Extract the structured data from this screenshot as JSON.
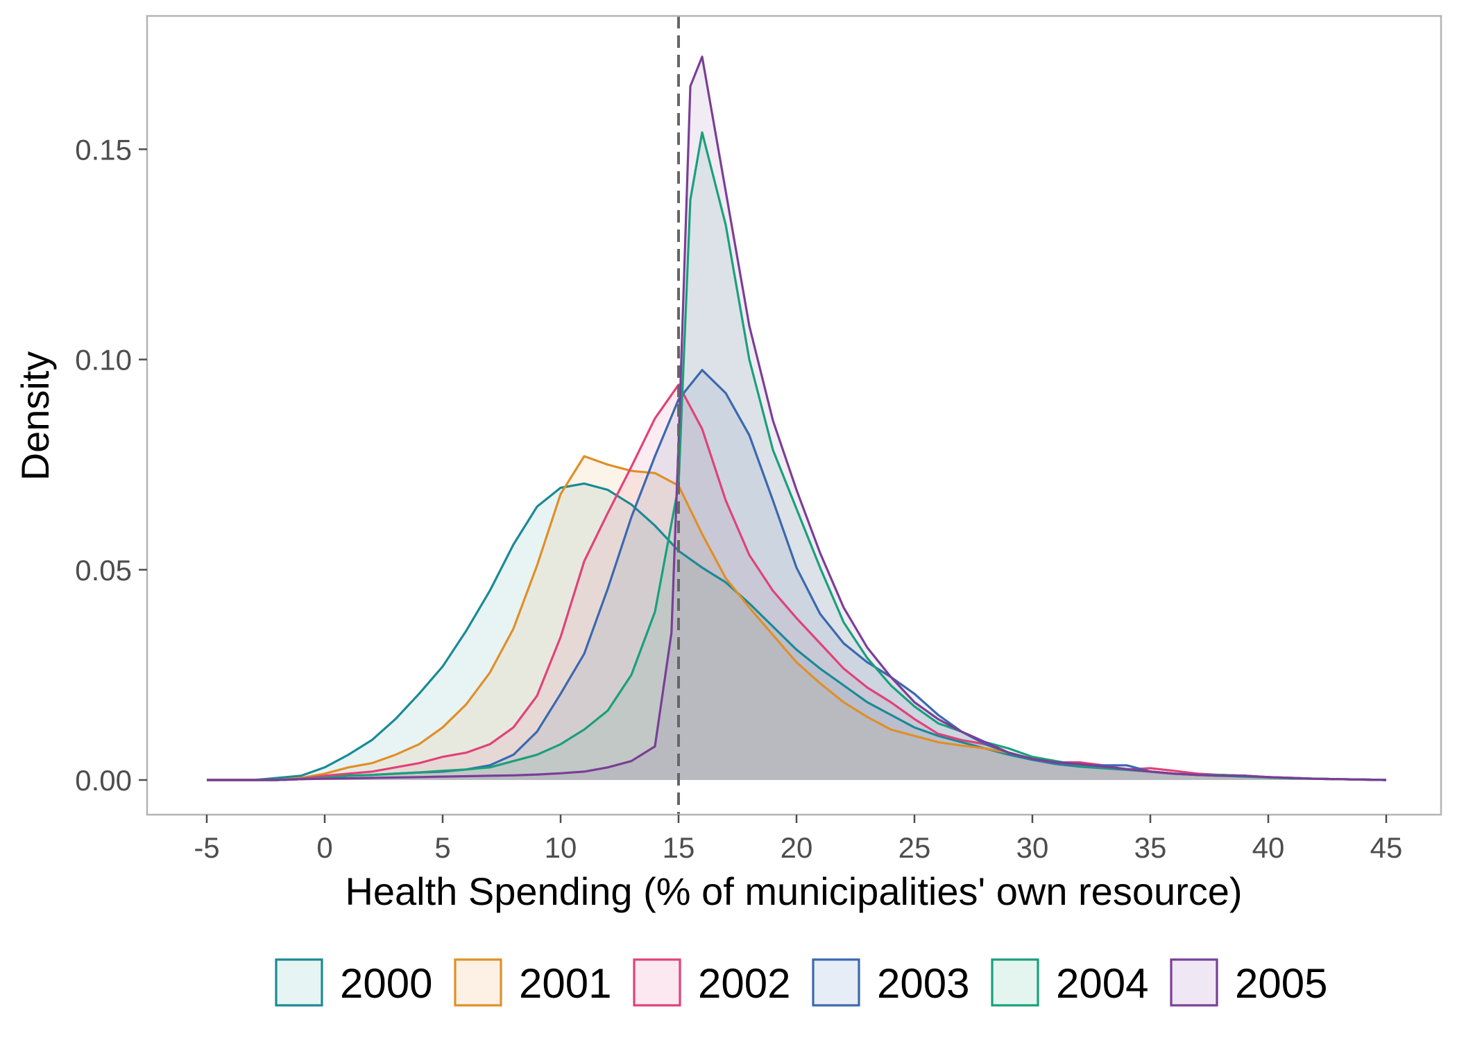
{
  "chart_data": {
    "type": "area",
    "subtype": "density",
    "title": "",
    "xlabel": "Health Spending (% of municipalities' own resource)",
    "ylabel": "Density",
    "xlim": [
      -5,
      45
    ],
    "ylim": [
      0,
      0.175
    ],
    "x_ticks": [
      -5,
      0,
      5,
      10,
      15,
      20,
      25,
      30,
      35,
      40,
      45
    ],
    "x_tick_labels": [
      "-5",
      "0",
      "5",
      "10",
      "15",
      "20",
      "25",
      "30",
      "35",
      "40",
      "45"
    ],
    "y_ticks": [
      0,
      0.05,
      0.1,
      0.15
    ],
    "y_tick_labels": [
      "0.00",
      "0.05",
      "0.10",
      "0.15"
    ],
    "grid": false,
    "legend_position": "bottom",
    "reference_line": {
      "x": 15,
      "style": "dashed",
      "color": "#666666"
    },
    "series": [
      {
        "name": "2000",
        "color": "#1a8a95",
        "fill": "#e6f4f4",
        "points": [
          [
            -5,
            0
          ],
          [
            -3,
            0
          ],
          [
            -2,
            0.0005
          ],
          [
            -1,
            0.001
          ],
          [
            0,
            0.003
          ],
          [
            1,
            0.006
          ],
          [
            2,
            0.0095
          ],
          [
            3,
            0.0145
          ],
          [
            4,
            0.0205
          ],
          [
            5,
            0.027
          ],
          [
            6,
            0.0355
          ],
          [
            7,
            0.045
          ],
          [
            8,
            0.056
          ],
          [
            9,
            0.065
          ],
          [
            10,
            0.0695
          ],
          [
            11,
            0.0705
          ],
          [
            12,
            0.069
          ],
          [
            13,
            0.0655
          ],
          [
            14,
            0.0605
          ],
          [
            15,
            0.0545
          ],
          [
            16,
            0.0505
          ],
          [
            17,
            0.047
          ],
          [
            18,
            0.042
          ],
          [
            19,
            0.0365
          ],
          [
            20,
            0.031
          ],
          [
            21,
            0.0265
          ],
          [
            22,
            0.0225
          ],
          [
            23,
            0.0185
          ],
          [
            24,
            0.0155
          ],
          [
            25,
            0.0125
          ],
          [
            26,
            0.0105
          ],
          [
            27,
            0.009
          ],
          [
            28,
            0.0075
          ],
          [
            29,
            0.006
          ],
          [
            30,
            0.0048
          ],
          [
            31,
            0.0038
          ],
          [
            32,
            0.0032
          ],
          [
            33,
            0.0028
          ],
          [
            34,
            0.0024
          ],
          [
            35,
            0.002
          ],
          [
            36,
            0.0015
          ],
          [
            37,
            0.0012
          ],
          [
            38,
            0.001
          ],
          [
            39,
            0.0008
          ],
          [
            40,
            0.0006
          ],
          [
            41,
            0.0004
          ],
          [
            42,
            0.0003
          ],
          [
            43,
            0.0002
          ],
          [
            44,
            0.0001
          ],
          [
            45,
            0
          ]
        ]
      },
      {
        "name": "2001",
        "color": "#e08f27",
        "fill": "#fcf1e4",
        "points": [
          [
            -5,
            0
          ],
          [
            -2,
            0
          ],
          [
            -1,
            0.0005
          ],
          [
            0,
            0.0015
          ],
          [
            1,
            0.003
          ],
          [
            2,
            0.004
          ],
          [
            3,
            0.006
          ],
          [
            4,
            0.0085
          ],
          [
            5,
            0.0125
          ],
          [
            6,
            0.018
          ],
          [
            7,
            0.0255
          ],
          [
            8,
            0.036
          ],
          [
            9,
            0.051
          ],
          [
            10,
            0.068
          ],
          [
            11,
            0.077
          ],
          [
            12,
            0.075
          ],
          [
            13,
            0.0735
          ],
          [
            14,
            0.073
          ],
          [
            15,
            0.07
          ],
          [
            16,
            0.0585
          ],
          [
            17,
            0.048
          ],
          [
            18,
            0.041
          ],
          [
            19,
            0.0345
          ],
          [
            20,
            0.028
          ],
          [
            21,
            0.023
          ],
          [
            22,
            0.0185
          ],
          [
            23,
            0.015
          ],
          [
            24,
            0.012
          ],
          [
            25,
            0.0105
          ],
          [
            26,
            0.009
          ],
          [
            27,
            0.0082
          ],
          [
            28,
            0.0075
          ],
          [
            29,
            0.0065
          ],
          [
            30,
            0.005
          ],
          [
            31,
            0.004
          ],
          [
            32,
            0.0035
          ],
          [
            33,
            0.003
          ],
          [
            34,
            0.0025
          ],
          [
            35,
            0.002
          ],
          [
            36,
            0.0015
          ],
          [
            37,
            0.0012
          ],
          [
            38,
            0.0012
          ],
          [
            39,
            0.001
          ],
          [
            40,
            0.0006
          ],
          [
            41,
            0.0004
          ],
          [
            42,
            0.0003
          ],
          [
            43,
            0.0002
          ],
          [
            44,
            0.0001
          ],
          [
            45,
            0
          ]
        ]
      },
      {
        "name": "2002",
        "color": "#e0427a",
        "fill": "#fce8f0",
        "points": [
          [
            -5,
            0
          ],
          [
            -2,
            0
          ],
          [
            -1,
            0.0003
          ],
          [
            0,
            0.001
          ],
          [
            1,
            0.0015
          ],
          [
            2,
            0.002
          ],
          [
            3,
            0.003
          ],
          [
            4,
            0.004
          ],
          [
            5,
            0.0055
          ],
          [
            6,
            0.0065
          ],
          [
            7,
            0.0085
          ],
          [
            8,
            0.0125
          ],
          [
            9,
            0.02
          ],
          [
            10,
            0.034
          ],
          [
            11,
            0.052
          ],
          [
            12,
            0.0635
          ],
          [
            13,
            0.0745
          ],
          [
            14,
            0.086
          ],
          [
            15,
            0.094
          ],
          [
            16,
            0.0835
          ],
          [
            17,
            0.0665
          ],
          [
            18,
            0.0535
          ],
          [
            19,
            0.045
          ],
          [
            20,
            0.0385
          ],
          [
            21,
            0.0325
          ],
          [
            22,
            0.0265
          ],
          [
            23,
            0.022
          ],
          [
            24,
            0.0185
          ],
          [
            25,
            0.0145
          ],
          [
            26,
            0.011
          ],
          [
            27,
            0.0095
          ],
          [
            28,
            0.0085
          ],
          [
            29,
            0.0065
          ],
          [
            30,
            0.005
          ],
          [
            31,
            0.0042
          ],
          [
            32,
            0.0042
          ],
          [
            33,
            0.0035
          ],
          [
            34,
            0.0025
          ],
          [
            35,
            0.0028
          ],
          [
            36,
            0.0022
          ],
          [
            37,
            0.0015
          ],
          [
            38,
            0.0012
          ],
          [
            39,
            0.001
          ],
          [
            40,
            0.0007
          ],
          [
            41,
            0.0005
          ],
          [
            42,
            0.0003
          ],
          [
            43,
            0.0002
          ],
          [
            44,
            0.0001
          ],
          [
            45,
            0
          ]
        ]
      },
      {
        "name": "2003",
        "color": "#3b68b0",
        "fill": "#e7edf6",
        "points": [
          [
            -5,
            0
          ],
          [
            -2,
            0
          ],
          [
            -1,
            0.0002
          ],
          [
            0,
            0.0005
          ],
          [
            1,
            0.001
          ],
          [
            2,
            0.0012
          ],
          [
            3,
            0.0015
          ],
          [
            4,
            0.0018
          ],
          [
            5,
            0.002
          ],
          [
            6,
            0.0025
          ],
          [
            7,
            0.0035
          ],
          [
            8,
            0.006
          ],
          [
            9,
            0.0115
          ],
          [
            10,
            0.0205
          ],
          [
            11,
            0.03
          ],
          [
            12,
            0.0455
          ],
          [
            13,
            0.0625
          ],
          [
            14,
            0.077
          ],
          [
            15,
            0.0905
          ],
          [
            16,
            0.0975
          ],
          [
            17,
            0.092
          ],
          [
            18,
            0.082
          ],
          [
            19,
            0.0665
          ],
          [
            20,
            0.0505
          ],
          [
            21,
            0.0395
          ],
          [
            22,
            0.0325
          ],
          [
            23,
            0.028
          ],
          [
            24,
            0.0245
          ],
          [
            25,
            0.0205
          ],
          [
            26,
            0.0155
          ],
          [
            27,
            0.0115
          ],
          [
            28,
            0.0085
          ],
          [
            29,
            0.0065
          ],
          [
            30,
            0.005
          ],
          [
            31,
            0.004
          ],
          [
            32,
            0.0035
          ],
          [
            33,
            0.0035
          ],
          [
            34,
            0.0035
          ],
          [
            35,
            0.002
          ],
          [
            36,
            0.0015
          ],
          [
            37,
            0.0012
          ],
          [
            38,
            0.001
          ],
          [
            39,
            0.001
          ],
          [
            40,
            0.0007
          ],
          [
            41,
            0.0005
          ],
          [
            42,
            0.0003
          ],
          [
            43,
            0.0002
          ],
          [
            44,
            0.0001
          ],
          [
            45,
            0
          ]
        ]
      },
      {
        "name": "2004",
        "color": "#19a07a",
        "fill": "#e3f5ee",
        "points": [
          [
            -5,
            0
          ],
          [
            -2,
            0
          ],
          [
            -1,
            0.0002
          ],
          [
            0,
            0.0005
          ],
          [
            1,
            0.001
          ],
          [
            2,
            0.0012
          ],
          [
            3,
            0.0015
          ],
          [
            4,
            0.0018
          ],
          [
            5,
            0.0022
          ],
          [
            6,
            0.0025
          ],
          [
            7,
            0.003
          ],
          [
            8,
            0.0045
          ],
          [
            9,
            0.006
          ],
          [
            10,
            0.0085
          ],
          [
            11,
            0.012
          ],
          [
            12,
            0.0165
          ],
          [
            13,
            0.025
          ],
          [
            14,
            0.04
          ],
          [
            15,
            0.07
          ],
          [
            15.5,
            0.138
          ],
          [
            16,
            0.154
          ],
          [
            17,
            0.132
          ],
          [
            18,
            0.1
          ],
          [
            19,
            0.0785
          ],
          [
            20,
            0.0645
          ],
          [
            21,
            0.0505
          ],
          [
            22,
            0.0375
          ],
          [
            23,
            0.029
          ],
          [
            24,
            0.0225
          ],
          [
            25,
            0.0175
          ],
          [
            26,
            0.0135
          ],
          [
            27,
            0.0115
          ],
          [
            28,
            0.009
          ],
          [
            29,
            0.0075
          ],
          [
            30,
            0.0055
          ],
          [
            31,
            0.0045
          ],
          [
            32,
            0.0035
          ],
          [
            33,
            0.003
          ],
          [
            34,
            0.0025
          ],
          [
            35,
            0.002
          ],
          [
            36,
            0.0015
          ],
          [
            37,
            0.0012
          ],
          [
            38,
            0.0012
          ],
          [
            39,
            0.001
          ],
          [
            40,
            0.0006
          ],
          [
            41,
            0.0004
          ],
          [
            42,
            0.0003
          ],
          [
            43,
            0.0002
          ],
          [
            44,
            0.0001
          ],
          [
            45,
            0
          ]
        ]
      },
      {
        "name": "2005",
        "color": "#7a3e96",
        "fill": "#efe7f3",
        "points": [
          [
            -5,
            0
          ],
          [
            -2,
            0
          ],
          [
            -1,
            0.0002
          ],
          [
            0,
            0.0003
          ],
          [
            1,
            0.0004
          ],
          [
            2,
            0.0005
          ],
          [
            3,
            0.0006
          ],
          [
            4,
            0.0007
          ],
          [
            5,
            0.0008
          ],
          [
            6,
            0.0009
          ],
          [
            7,
            0.001
          ],
          [
            8,
            0.0011
          ],
          [
            9,
            0.0013
          ],
          [
            10,
            0.0016
          ],
          [
            11,
            0.002
          ],
          [
            12,
            0.003
          ],
          [
            13,
            0.0045
          ],
          [
            14,
            0.008
          ],
          [
            14.7,
            0.035
          ],
          [
            15,
            0.08
          ],
          [
            15.5,
            0.165
          ],
          [
            16,
            0.172
          ],
          [
            17,
            0.14
          ],
          [
            18,
            0.108
          ],
          [
            19,
            0.0855
          ],
          [
            20,
            0.069
          ],
          [
            21,
            0.054
          ],
          [
            22,
            0.041
          ],
          [
            23,
            0.0315
          ],
          [
            24,
            0.0245
          ],
          [
            25,
            0.0185
          ],
          [
            26,
            0.0145
          ],
          [
            27,
            0.0115
          ],
          [
            28,
            0.009
          ],
          [
            29,
            0.0065
          ],
          [
            30,
            0.005
          ],
          [
            31,
            0.0042
          ],
          [
            32,
            0.0038
          ],
          [
            33,
            0.0032
          ],
          [
            34,
            0.0026
          ],
          [
            35,
            0.002
          ],
          [
            36,
            0.0015
          ],
          [
            37,
            0.0012
          ],
          [
            38,
            0.001
          ],
          [
            39,
            0.001
          ],
          [
            40,
            0.0007
          ],
          [
            41,
            0.0005
          ],
          [
            42,
            0.0003
          ],
          [
            43,
            0.0002
          ],
          [
            44,
            0.0001
          ],
          [
            45,
            0
          ]
        ]
      }
    ]
  }
}
